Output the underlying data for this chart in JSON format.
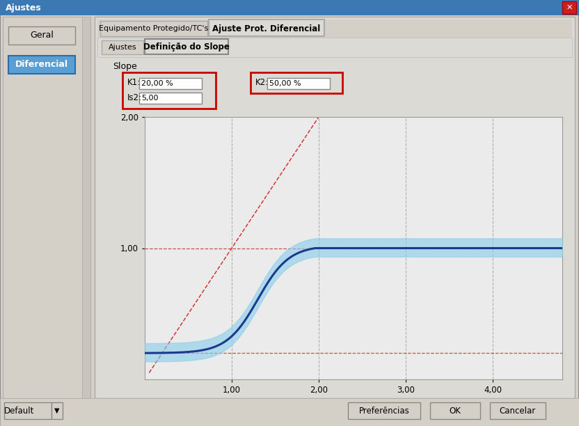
{
  "title": "Ajustes",
  "tab1": "Equipamento Protegido/TC's",
  "tab2": "Ajuste Prot. Diferencial",
  "subtab1": "Ajustes",
  "subtab2": "Definição do Slope",
  "slope_label": "Slope",
  "k1_label": "K1:",
  "k1_value": "20,00 %",
  "k2_label": "K2:",
  "k2_value": "50,00 %",
  "is2_label": "Is2:",
  "is2_value": "5,00",
  "btn_geral": "Geral",
  "btn_diferencial": "Diferencial",
  "btn_default": "Default",
  "btn_preferencias": "Preferências",
  "btn_ok": "OK",
  "btn_cancelar": "Cancelar",
  "bg_color": "#d4d0c8",
  "panel_color": "#e8e4dc",
  "content_color": "#dcdad4",
  "white": "#ffffff",
  "red_border": "#cc0000",
  "blue_line": "#1a3a8f",
  "blue_fill": "#87ceeb",
  "red_dashed": "#cc2222",
  "grid_color": "#aaaaaa",
  "plot_bg": "#ebebeb",
  "xmin": 0.0,
  "xmax": 4.8,
  "ymin": 0.0,
  "ymax": 2.0,
  "xticks": [
    1.0,
    2.0,
    3.0,
    4.0
  ],
  "yticks": [
    1.0,
    2.0
  ],
  "K1": 0.2,
  "K2": 0.5,
  "Is2": 5.0
}
